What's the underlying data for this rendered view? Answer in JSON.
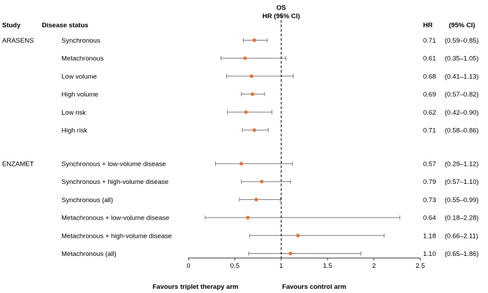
{
  "chart_data": {
    "type": "forest",
    "title": "OS",
    "subtitle": "HR (95% CI)",
    "headers": {
      "study": "Study",
      "disease_status": "Disease status",
      "hr": "HR",
      "ci": "(95% CI)"
    },
    "x_axis": {
      "range": [
        0,
        2.5
      ],
      "ticks": [
        "0",
        "0.5",
        "1",
        "1.5",
        "2",
        "2.5"
      ],
      "reference_line": 1
    },
    "footer": {
      "left": "Favours triplet therapy arm",
      "right": "Favours control arm"
    },
    "groups": [
      {
        "study": "ARASENS",
        "rows": [
          {
            "label": "Synchronous",
            "hr": 0.71,
            "lo": 0.59,
            "hi": 0.85,
            "hr_text": "0.71",
            "ci_text": "(0.59–0.85)"
          },
          {
            "label": "Metachronous",
            "hr": 0.61,
            "lo": 0.35,
            "hi": 1.05,
            "hr_text": "0.61",
            "ci_text": "(0.35–1.05)"
          },
          {
            "label": "Low volume",
            "hr": 0.68,
            "lo": 0.41,
            "hi": 1.13,
            "hr_text": "0.68",
            "ci_text": "(0.41–1.13)"
          },
          {
            "label": "High volume",
            "hr": 0.69,
            "lo": 0.57,
            "hi": 0.82,
            "hr_text": "0.69",
            "ci_text": "(0.57–0.82)"
          },
          {
            "label": "Low risk",
            "hr": 0.62,
            "lo": 0.42,
            "hi": 0.9,
            "hr_text": "0.62",
            "ci_text": "(0.42–0.90)"
          },
          {
            "label": "High risk",
            "hr": 0.71,
            "lo": 0.58,
            "hi": 0.86,
            "hr_text": "0.71",
            "ci_text": "(0.58–0.86)"
          }
        ]
      },
      {
        "study": "ENZAMET",
        "rows": [
          {
            "label": "Synchronous + low-volume disease",
            "hr": 0.57,
            "lo": 0.29,
            "hi": 1.12,
            "hr_text": "0.57",
            "ci_text": "(0.29–1.12)"
          },
          {
            "label": "Synchronous + high-volume disease",
            "hr": 0.79,
            "lo": 0.57,
            "hi": 1.1,
            "hr_text": "0.79",
            "ci_text": "(0.57–1.10)"
          },
          {
            "label": "Synchronous (all)",
            "hr": 0.73,
            "lo": 0.55,
            "hi": 0.99,
            "hr_text": "0.73",
            "ci_text": "(0.55–0.99)"
          },
          {
            "label": "Metachronous + low-volume disease",
            "hr": 0.64,
            "lo": 0.18,
            "hi": 2.28,
            "hr_text": "0.64",
            "ci_text": "(0.18–2.28)"
          },
          {
            "label": "Metachronous + high-volume disease",
            "hr": 1.18,
            "lo": 0.66,
            "hi": 2.11,
            "hr_text": "1.18",
            "ci_text": "(0.66–2.11)"
          },
          {
            "label": "Metachronous (all)",
            "hr": 1.1,
            "lo": 0.65,
            "hi": 1.86,
            "hr_text": "1.10",
            "ci_text": "(0.65–1.86)"
          }
        ]
      }
    ],
    "colors": {
      "point": "#e8743b",
      "ci_line": "#7a7a7a",
      "axis": "#333333",
      "text": "#1a1a1a"
    }
  }
}
